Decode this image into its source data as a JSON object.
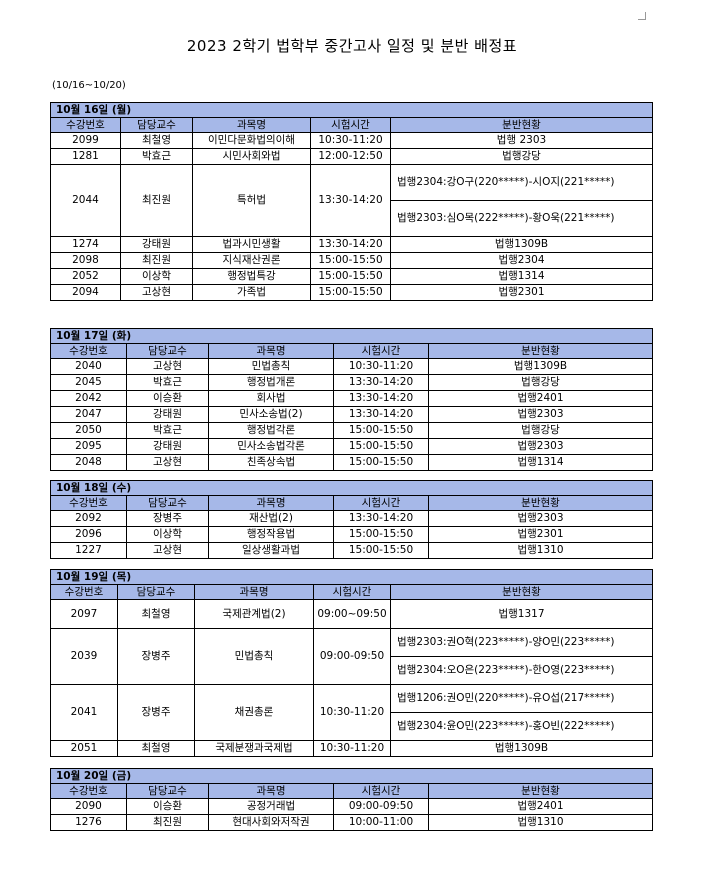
{
  "title": "2023 2학기 법학부 중간고사 일정 및 분반 배정표",
  "date_range": "(10/16~10/20)",
  "header_fill": "#a6b8e8",
  "columns": [
    "수강번호",
    "담당교수",
    "과목명",
    "시험시간",
    "분반현황"
  ],
  "days": [
    {
      "label": "10월 16일 (월)",
      "rows": [
        {
          "code": "2099",
          "professor": "최철영",
          "course": "이민다문화법의이해",
          "time": "10:30-11:20",
          "rooms": [
            "법행 2303"
          ]
        },
        {
          "code": "1281",
          "professor": "박효근",
          "course": "시민사회와법",
          "time": "12:00-12:50",
          "rooms": [
            "법행강당"
          ]
        },
        {
          "code": "2044",
          "professor": "최진원",
          "course": "특허법",
          "time": "13:30-14:20",
          "rooms": [
            "법행2304:강O구(220*****)-시O지(221*****)",
            "법행2303:심O목(222*****)-황O욱(221*****)"
          ]
        },
        {
          "code": "1274",
          "professor": "강태원",
          "course": "법과시민생활",
          "time": "13:30-14:20",
          "rooms": [
            "법행1309B"
          ]
        },
        {
          "code": "2098",
          "professor": "최진원",
          "course": "지식재산권론",
          "time": "15:00-15:50",
          "rooms": [
            "법행2304"
          ]
        },
        {
          "code": "2052",
          "professor": "이상학",
          "course": "행정법특강",
          "time": "15:00-15:50",
          "rooms": [
            "법행1314"
          ]
        },
        {
          "code": "2094",
          "professor": "고상현",
          "course": "가족법",
          "time": "15:00-15:50",
          "rooms": [
            "법행2301"
          ]
        }
      ]
    },
    {
      "label": "10월 17일 (화)",
      "rows": [
        {
          "code": "2040",
          "professor": "고상현",
          "course": "민법총칙",
          "time": "10:30-11:20",
          "rooms": [
            "법행1309B"
          ]
        },
        {
          "code": "2045",
          "professor": "박효근",
          "course": "행정법개론",
          "time": "13:30-14:20",
          "rooms": [
            "법행강당"
          ]
        },
        {
          "code": "2042",
          "professor": "이승환",
          "course": "회사법",
          "time": "13:30-14:20",
          "rooms": [
            "법행2401"
          ]
        },
        {
          "code": "2047",
          "professor": "강태원",
          "course": "민사소송법(2)",
          "time": "13:30-14:20",
          "rooms": [
            "법행2303"
          ]
        },
        {
          "code": "2050",
          "professor": "박효근",
          "course": "행정법각론",
          "time": "15:00-15:50",
          "rooms": [
            "법행강당"
          ]
        },
        {
          "code": "2095",
          "professor": "강태원",
          "course": "민사소송법각론",
          "time": "15:00-15:50",
          "rooms": [
            "법행2303"
          ]
        },
        {
          "code": "2048",
          "professor": "고상현",
          "course": "친족상속법",
          "time": "15:00-15:50",
          "rooms": [
            "법행1314"
          ]
        }
      ]
    },
    {
      "label": "10월 18일 (수)",
      "rows": [
        {
          "code": "2092",
          "professor": "장병주",
          "course": "재산법(2)",
          "time": "13:30-14:20",
          "rooms": [
            "법행2303"
          ]
        },
        {
          "code": "2096",
          "professor": "이상학",
          "course": "행정작용법",
          "time": "15:00-15:50",
          "rooms": [
            "법행2301"
          ]
        },
        {
          "code": "1227",
          "professor": "고상현",
          "course": "일상생활과법",
          "time": "15:00-15:50",
          "rooms": [
            "법행1310"
          ]
        }
      ]
    },
    {
      "label": "10월 19일 (목)",
      "rows": [
        {
          "code": "2097",
          "professor": "최철영",
          "course": "국제관계법(2)",
          "time": "09:00~09:50",
          "rooms": [
            "법행1317"
          ]
        },
        {
          "code": "2039",
          "professor": "장병주",
          "course": "민법총칙",
          "time": "09:00-09:50",
          "rooms": [
            "법행2303:권O혁(223*****)-양O민(223*****)",
            "법행2304:오O은(223*****)-한O영(223*****)"
          ]
        },
        {
          "code": "2041",
          "professor": "장병주",
          "course": "채권총론",
          "time": "10:30-11:20",
          "rooms": [
            "법행1206:권O민(220*****)-유O섭(217*****)",
            "법행2304:윤O민(223*****)-홍O빈(222*****)"
          ]
        },
        {
          "code": "2051",
          "professor": "최철영",
          "course": "국제분쟁과국제법",
          "time": "10:30-11:20",
          "rooms": [
            "법행1309B"
          ]
        }
      ]
    },
    {
      "label": "10월 20일 (금)",
      "rows": [
        {
          "code": "2090",
          "professor": "이승환",
          "course": "공정거래법",
          "time": "09:00-09:50",
          "rooms": [
            "법행2401"
          ]
        },
        {
          "code": "1276",
          "professor": "최진원",
          "course": "현대사회와저작권",
          "time": "10:00-11:00",
          "rooms": [
            "법행1310"
          ]
        }
      ]
    }
  ]
}
